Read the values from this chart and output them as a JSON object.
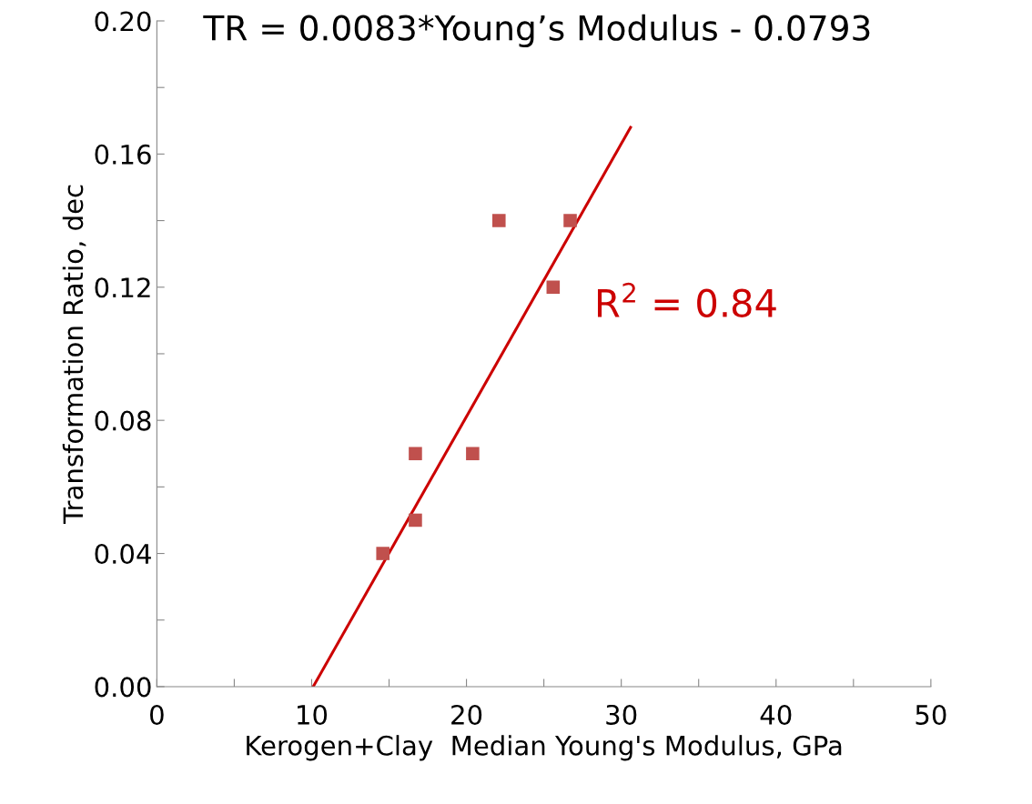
{
  "chart_data": {
    "type": "scatter",
    "title": "TR = 0.0083*Young’s Modulus - 0.0793",
    "xlabel": "Kerogen+Clay  Median Young's Modulus, GPa",
    "ylabel": "Transformation Ratio, dec",
    "annotations": [
      "R$^{2}$ = 0.84"
    ],
    "series": [
      {
        "marker": "square",
        "color": "#c0504d",
        "x": [
          14.6,
          16.7,
          16.7,
          20.4,
          22.1,
          25.6,
          26.7
        ],
        "values": [
          0.04,
          0.05,
          0.07,
          0.07,
          0.14,
          0.12,
          0.14
        ]
      },
      {
        "type": "line",
        "color": "#cc0000",
        "x": [
          10.1,
          30.6
        ],
        "values": [
          0.0,
          0.168
        ]
      }
    ],
    "xlim": [
      0,
      50
    ],
    "xticks": [
      0,
      {
        "value": 5,
        "label": null
      },
      10,
      {
        "value": 15,
        "label": null
      },
      20,
      {
        "value": 25,
        "label": null
      },
      30,
      {
        "value": 35,
        "label": null
      },
      40,
      {
        "value": 45,
        "label": null
      },
      50
    ],
    "ylim": [
      0,
      0.2
    ],
    "yticks": [
      {
        "value": 0,
        "label": "0.00"
      },
      {
        "value": 0.02,
        "label": null
      },
      {
        "value": 0.04,
        "label": "0.04"
      },
      {
        "value": 0.06,
        "label": null
      },
      {
        "value": 0.08,
        "label": "0.08"
      },
      {
        "value": 0.1,
        "label": null
      },
      {
        "value": 0.12,
        "label": "0.12"
      },
      {
        "value": 0.14,
        "label": null
      },
      {
        "value": 0.16,
        "label": "0.16"
      },
      {
        "value": 0.18,
        "label": null
      },
      {
        "value": 0.2,
        "label": "0.20"
      }
    ],
    "grid": false,
    "legend": false
  }
}
